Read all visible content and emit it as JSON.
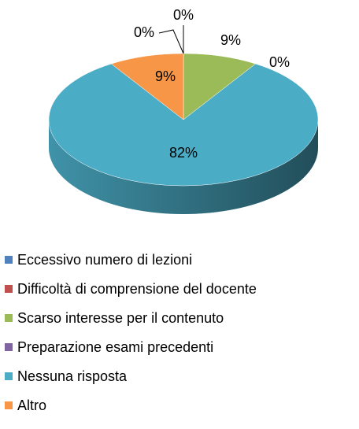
{
  "chart_data": {
    "type": "pie",
    "categories": [
      "Eccessivo numero di lezioni",
      "Difficoltà di comprensione del docente",
      "Scarso interesse per il contenuto",
      "Preparazione esami precedenti",
      "Nessuna risposta",
      "Altro"
    ],
    "values": [
      0,
      0,
      9,
      0,
      82,
      9
    ],
    "value_labels": [
      "0%",
      "0%",
      "9%",
      "0%",
      "82%",
      "9%"
    ],
    "colors": [
      "#4f81bd",
      "#c0504d",
      "#9bbb59",
      "#8064a2",
      "#4bacc6",
      "#f79646"
    ],
    "legend": "bottom"
  }
}
